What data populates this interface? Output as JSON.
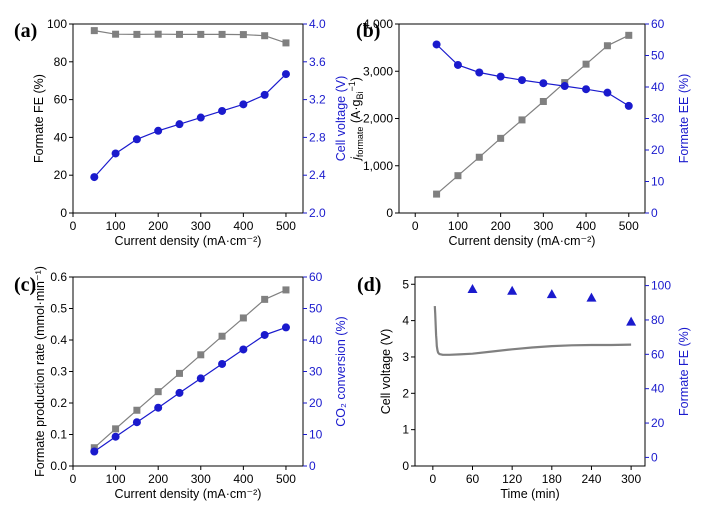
{
  "chart_data": [
    {
      "panel_label": "(a)",
      "type": "line",
      "xlabel": "Current density (mA·cm⁻²)",
      "ylabel": "Formate FE (%)",
      "y2label": "Cell voltage (V)",
      "xlim": [
        0,
        540
      ],
      "ylim": [
        0,
        100
      ],
      "y2lim": [
        2.0,
        4.0
      ],
      "x_tick_labels": [
        "0",
        "100",
        "200",
        "300",
        "400",
        "500"
      ],
      "y_tick_labels": [
        "0",
        "20",
        "40",
        "60",
        "80",
        "100"
      ],
      "y2_tick_labels": [
        "2.0",
        "2.4",
        "2.8",
        "3.2",
        "3.6",
        "4.0"
      ],
      "series_left": {
        "color": "#808080",
        "x": [
          50,
          100,
          150,
          200,
          250,
          300,
          350,
          400,
          450,
          500
        ],
        "y": [
          96.5,
          94.6,
          94.5,
          94.6,
          94.5,
          94.5,
          94.5,
          94.4,
          93.8,
          90.0
        ]
      },
      "series_right": {
        "color": "#1a1acd",
        "x": [
          50,
          100,
          150,
          200,
          250,
          300,
          350,
          400,
          450,
          500
        ],
        "y": [
          2.38,
          2.63,
          2.78,
          2.87,
          2.94,
          3.01,
          3.08,
          3.15,
          3.25,
          3.47
        ]
      }
    },
    {
      "panel_label": "(b)",
      "type": "line",
      "xlabel": "Current density (mA·cm⁻²)",
      "ylabel": {
        "symbol": "j",
        "symbol_sub": "formate",
        "unit_open": " (A·g",
        "unit_sub": "Bi",
        "unit_sup": "−1",
        "unit_close": ")"
      },
      "y2label": "Formate EE (%)",
      "xlim": [
        -38,
        538
      ],
      "ylim": [
        0,
        4000
      ],
      "y2lim": [
        0,
        60
      ],
      "x_tick_labels": [
        "0",
        "100",
        "200",
        "300",
        "400",
        "500"
      ],
      "y_tick_labels": [
        "0",
        "1,000",
        "2,000",
        "3,000",
        "4,000"
      ],
      "y2_tick_labels": [
        "0",
        "10",
        "20",
        "30",
        "40",
        "50",
        "60"
      ],
      "series_left": {
        "color": "#808080",
        "x": [
          50,
          100,
          150,
          200,
          250,
          300,
          350,
          400,
          450,
          500
        ],
        "y": [
          400,
          790,
          1180,
          1580,
          1970,
          2360,
          2760,
          3150,
          3540,
          3760
        ]
      },
      "series_right": {
        "color": "#1a1acd",
        "x": [
          50,
          100,
          150,
          200,
          250,
          300,
          350,
          400,
          450,
          500
        ],
        "y": [
          53.5,
          47.0,
          44.6,
          43.3,
          42.2,
          41.2,
          40.3,
          39.3,
          38.2,
          34.0
        ]
      }
    },
    {
      "panel_label": "(c)",
      "type": "line",
      "xlabel": "Current density (mA·cm⁻²)",
      "ylabel": "Formate production rate (mmol·min⁻¹)",
      "y2label": "CO₂ conversion (%)",
      "xlim": [
        0,
        540
      ],
      "ylim": [
        0,
        0.6
      ],
      "y2lim": [
        0,
        60
      ],
      "x_tick_labels": [
        "0",
        "100",
        "200",
        "300",
        "400",
        "500"
      ],
      "y_tick_labels": [
        "0.0",
        "0.1",
        "0.2",
        "0.3",
        "0.4",
        "0.5",
        "0.6"
      ],
      "y2_tick_labels": [
        "0",
        "10",
        "20",
        "30",
        "40",
        "50",
        "60"
      ],
      "series_left": {
        "color": "#808080",
        "x": [
          50,
          100,
          150,
          200,
          250,
          300,
          350,
          400,
          450,
          500
        ],
        "y": [
          0.058,
          0.118,
          0.177,
          0.236,
          0.294,
          0.353,
          0.412,
          0.47,
          0.529,
          0.559
        ]
      },
      "series_right": {
        "color": "#1a1acd",
        "x": [
          50,
          100,
          150,
          200,
          250,
          300,
          350,
          400,
          450,
          500
        ],
        "y": [
          4.6,
          9.3,
          13.9,
          18.5,
          23.2,
          27.8,
          32.4,
          37.0,
          41.6,
          44.0
        ]
      }
    },
    {
      "panel_label": "(d)",
      "type": "line",
      "xlabel": "Time (min)",
      "ylabel": "Cell voltage (V)",
      "y2label": "Formate FE (%)",
      "xlim": [
        -27,
        321
      ],
      "ylim": [
        0,
        5.2
      ],
      "y2lim": [
        -5,
        105
      ],
      "x_tick_labels": [
        "0",
        "60",
        "120",
        "180",
        "240",
        "300"
      ],
      "y_tick_labels": [
        "0",
        "1",
        "2",
        "3",
        "4",
        "5"
      ],
      "y2_tick_labels": [
        "0",
        "20",
        "40",
        "60",
        "80",
        "100"
      ],
      "series_left": {
        "color": "#808080",
        "x": [
          3,
          3.5,
          4,
          4.5,
          5,
          5.5,
          6,
          7,
          8,
          10,
          15,
          25,
          40,
          60,
          90,
          120,
          150,
          180,
          210,
          240,
          270,
          300
        ],
        "y": [
          4.4,
          4.2,
          4.0,
          3.8,
          3.6,
          3.45,
          3.3,
          3.18,
          3.12,
          3.08,
          3.06,
          3.06,
          3.07,
          3.09,
          3.15,
          3.21,
          3.26,
          3.3,
          3.32,
          3.33,
          3.33,
          3.34
        ]
      },
      "series_right": {
        "color": "#1a1acd",
        "x": [
          60,
          120,
          180,
          240,
          300
        ],
        "y": [
          98,
          97,
          95,
          93,
          79
        ]
      }
    }
  ]
}
